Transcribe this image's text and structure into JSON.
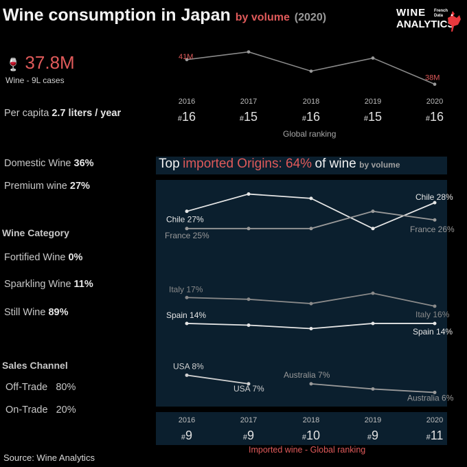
{
  "header": {
    "title": "Wine consumption in Japan",
    "subtitle_red": "by volume",
    "subtitle_grey": "(2020)"
  },
  "logo": {
    "line1": "WINE",
    "line2": "ANALYTICS",
    "small1": "French",
    "small2": "Data"
  },
  "kpi": {
    "value": "37.8M",
    "caption": "Wine - 9L cases",
    "icon": "wine-bottle-icon"
  },
  "per_capita": {
    "label": "Per capita",
    "value": "2.7 liters / year"
  },
  "shares": [
    {
      "label": "Domestic Wine",
      "value": "36%"
    },
    {
      "label": "Premium wine",
      "value": "27%"
    }
  ],
  "category": {
    "heading": "Wine Category",
    "items": [
      {
        "label": "Fortified Wine",
        "value": "0%"
      },
      {
        "label": "Sparkling Wine",
        "value": "11%"
      },
      {
        "label": "Still Wine",
        "value": "89%"
      }
    ]
  },
  "channel": {
    "heading": "Sales Channel",
    "items": [
      {
        "label": "Off-Trade",
        "value": "80%"
      },
      {
        "label": "On-Trade",
        "value": "20%"
      }
    ]
  },
  "source": "Source: Wine Analytics",
  "colors": {
    "accent": "#e05a5a",
    "panel": "#0b1f2e"
  },
  "chart_data": [
    {
      "type": "line",
      "x": [
        "2016",
        "2017",
        "2018",
        "2019",
        "2020"
      ],
      "series": [
        {
          "values": [
            41.0,
            42.0,
            39.5,
            41.2,
            37.8
          ]
        }
      ],
      "point_labels": {
        "first": "41M",
        "last": "38M"
      },
      "ranking": {
        "label": "Global ranking",
        "prefix": "#",
        "values": [
          "16",
          "15",
          "16",
          "15",
          "16"
        ]
      }
    },
    {
      "type": "line",
      "title_parts": [
        "Top",
        "imported Origins: 64%",
        "of wine",
        "by volume"
      ],
      "x": [
        "2016",
        "2017",
        "2018",
        "2019",
        "2020"
      ],
      "series": [
        {
          "name": "Chile",
          "values": [
            27,
            29,
            28.5,
            25,
            28
          ],
          "start_label": "Chile 27%",
          "end_label": "Chile 28%"
        },
        {
          "name": "France",
          "values": [
            25,
            25,
            25,
            27,
            26
          ],
          "start_label": "France 25%",
          "end_label": "France 26%"
        },
        {
          "name": "Italy",
          "values": [
            17,
            16.8,
            16.3,
            17.5,
            16
          ],
          "start_label": "Italy 17%",
          "end_label": "Italy 16%"
        },
        {
          "name": "Spain",
          "values": [
            14,
            13.8,
            13.4,
            14,
            14
          ],
          "start_label": "Spain 14%",
          "end_label": "Spain 14%"
        },
        {
          "name": "USA",
          "values": [
            8,
            7,
            null,
            null,
            null
          ],
          "start_label": "USA 8%",
          "end_label": "USA 7%"
        },
        {
          "name": "Australia",
          "values": [
            null,
            null,
            7,
            6.4,
            6
          ],
          "start_label": "Australia 7%",
          "end_label": "Australia 6%"
        }
      ],
      "ranking": {
        "label": "Imported wine - Global ranking",
        "prefix": "#",
        "values": [
          "9",
          "9",
          "10",
          "9",
          "11"
        ]
      }
    }
  ]
}
